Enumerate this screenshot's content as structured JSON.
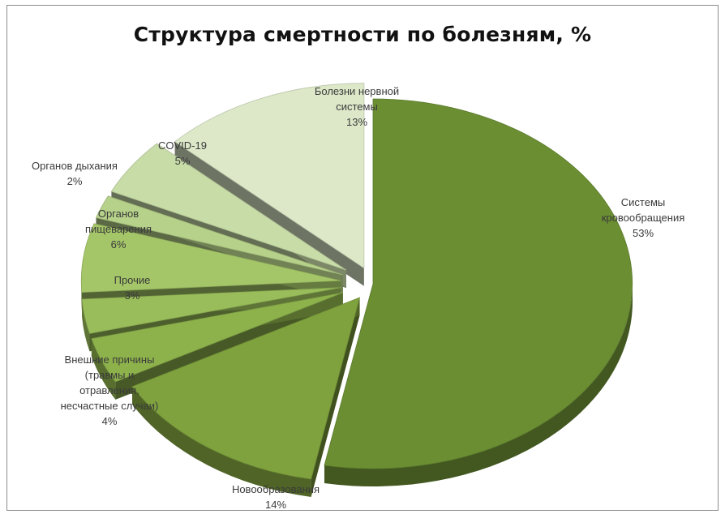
{
  "chart_data": {
    "type": "pie",
    "title": "Структура смертности по болезням, %",
    "slices": [
      {
        "name": "Системы кровообращения",
        "value": 53,
        "label": "53%",
        "color": "#6b8e33"
      },
      {
        "name": "Новообразования",
        "value": 14,
        "label": "14%",
        "color": "#7fa23e"
      },
      {
        "name": "Внешние причины (травмы и отравления, несчастные случаи)",
        "value": 4,
        "label": "4%",
        "color": "#8db24c"
      },
      {
        "name": "Прочие",
        "value": 3,
        "label": "3%",
        "color": "#99bd5a"
      },
      {
        "name": "Органов пищеварения",
        "value": 6,
        "label": "6%",
        "color": "#a4c668"
      },
      {
        "name": "Органов дыхания",
        "value": 2,
        "label": "2%",
        "color": "#b6d189"
      },
      {
        "name": "COVID-19",
        "value": 5,
        "label": "5%",
        "color": "#c8dca8"
      },
      {
        "name": "Болезни нервной системы",
        "value": 13,
        "label": "13%",
        "color": "#dce8c8"
      }
    ]
  }
}
